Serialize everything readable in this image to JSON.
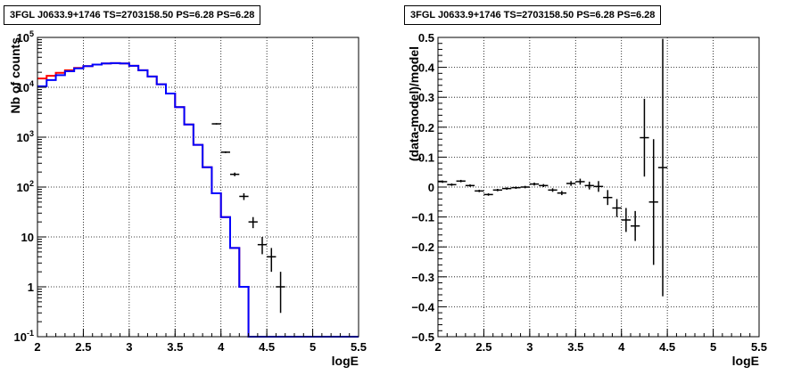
{
  "chart_data": [
    {
      "type": "line",
      "title": "3FGL J0633.9+1746 TS=2703158.50 PS=6.28 PS=6.28",
      "xlabel": "logE",
      "ylabel": "Nb of counts",
      "xlim": [
        2,
        5.5
      ],
      "ylim": [
        0.1,
        100000
      ],
      "yscale": "log",
      "grid": true,
      "x_ticks": [
        "2",
        "2.5",
        "3",
        "3.5",
        "4",
        "4.5",
        "5",
        "5.5"
      ],
      "y_ticks": [
        "10^-1",
        "1",
        "10",
        "10^2",
        "10^3",
        "10^4",
        "10^5"
      ],
      "bin_edges": [
        2.0,
        2.1,
        2.2,
        2.3,
        2.4,
        2.5,
        2.6,
        2.7,
        2.8,
        2.9,
        3.0,
        3.1,
        3.2,
        3.3,
        3.4,
        3.5,
        3.6,
        3.7,
        3.8,
        3.9,
        4.0,
        4.1,
        4.2,
        4.3,
        4.4,
        4.5,
        4.6,
        4.7,
        4.8,
        4.9,
        5.0,
        5.1,
        5.2,
        5.3,
        5.4,
        5.5
      ],
      "series": [
        {
          "color": "#ff0000",
          "values": [
            15000,
            17000,
            19500,
            22000,
            24500,
            26500,
            28500,
            30000,
            30500,
            30000,
            27000,
            22000,
            16500,
            11500,
            7500,
            4000,
            1800,
            700,
            250,
            75,
            25,
            6,
            1,
            0.1,
            0.1,
            0.1,
            0.1,
            0.1,
            0.1,
            0.1,
            0.1,
            0.1,
            0.1,
            0.1,
            0.1
          ]
        },
        {
          "color": "#0000ff",
          "values": [
            10500,
            14000,
            17500,
            21000,
            24000,
            26500,
            28500,
            30000,
            30500,
            30000,
            27000,
            22000,
            16500,
            11500,
            7500,
            4000,
            1800,
            700,
            250,
            75,
            25,
            6,
            1,
            0.1,
            0.1,
            0.1,
            0.1,
            0.1,
            0.1,
            0.1,
            0.1,
            0.1,
            0.1,
            0.1,
            0.1
          ]
        }
      ],
      "data_points": [
        {
          "x": 3.95,
          "y": 1850,
          "err_low": 1790,
          "err_high": 1910
        },
        {
          "x": 4.05,
          "y": 500,
          "err_low": 480,
          "err_high": 520
        },
        {
          "x": 4.15,
          "y": 180,
          "err_low": 165,
          "err_high": 195
        },
        {
          "x": 4.25,
          "y": 65,
          "err_low": 55,
          "err_high": 75
        },
        {
          "x": 4.35,
          "y": 20,
          "err_low": 15,
          "err_high": 25
        },
        {
          "x": 4.45,
          "y": 7,
          "err_low": 4.5,
          "err_high": 10
        },
        {
          "x": 4.55,
          "y": 4,
          "err_low": 2,
          "err_high": 6
        },
        {
          "x": 4.65,
          "y": 1,
          "err_low": 0.3,
          "err_high": 2
        }
      ]
    },
    {
      "type": "scatter",
      "title": "3FGL J0633.9+1746 TS=2703158.50 PS=6.28 PS=6.28",
      "xlabel": "logE",
      "ylabel": "(data-model)/model",
      "xlim": [
        2,
        5.5
      ],
      "ylim": [
        -0.5,
        0.5
      ],
      "grid": true,
      "x_ticks": [
        "2",
        "2.5",
        "3",
        "3.5",
        "4",
        "4.5",
        "5",
        "5.5"
      ],
      "y_ticks": [
        "−0.5",
        "−0.4",
        "−0.3",
        "−0.2",
        "−0.1",
        "0",
        "0.1",
        "0.2",
        "0.3",
        "0.4",
        "0.5"
      ],
      "points": [
        {
          "x": 2.05,
          "y": 0.018,
          "err": 0.004
        },
        {
          "x": 2.15,
          "y": 0.008,
          "err": 0.004
        },
        {
          "x": 2.25,
          "y": 0.02,
          "err": 0.004
        },
        {
          "x": 2.35,
          "y": 0.005,
          "err": 0.004
        },
        {
          "x": 2.45,
          "y": -0.013,
          "err": 0.004
        },
        {
          "x": 2.55,
          "y": -0.025,
          "err": 0.004
        },
        {
          "x": 2.65,
          "y": -0.01,
          "err": 0.004
        },
        {
          "x": 2.75,
          "y": -0.005,
          "err": 0.004
        },
        {
          "x": 2.85,
          "y": -0.002,
          "err": 0.004
        },
        {
          "x": 2.95,
          "y": 0.0,
          "err": 0.004
        },
        {
          "x": 3.05,
          "y": 0.01,
          "err": 0.005
        },
        {
          "x": 3.15,
          "y": 0.005,
          "err": 0.005
        },
        {
          "x": 3.25,
          "y": -0.01,
          "err": 0.006
        },
        {
          "x": 3.35,
          "y": -0.02,
          "err": 0.007
        },
        {
          "x": 3.45,
          "y": 0.012,
          "err": 0.008
        },
        {
          "x": 3.55,
          "y": 0.018,
          "err": 0.01
        },
        {
          "x": 3.65,
          "y": 0.005,
          "err": 0.013
        },
        {
          "x": 3.75,
          "y": 0.002,
          "err": 0.018
        },
        {
          "x": 3.85,
          "y": -0.035,
          "err": 0.025
        },
        {
          "x": 3.95,
          "y": -0.07,
          "err": 0.03
        },
        {
          "x": 4.05,
          "y": -0.11,
          "err": 0.04
        },
        {
          "x": 4.15,
          "y": -0.13,
          "err": 0.05
        },
        {
          "x": 4.25,
          "y": 0.165,
          "err": 0.13
        },
        {
          "x": 4.35,
          "y": -0.05,
          "err": 0.21
        },
        {
          "x": 4.45,
          "y": 0.065,
          "err": 0.43
        }
      ]
    }
  ]
}
